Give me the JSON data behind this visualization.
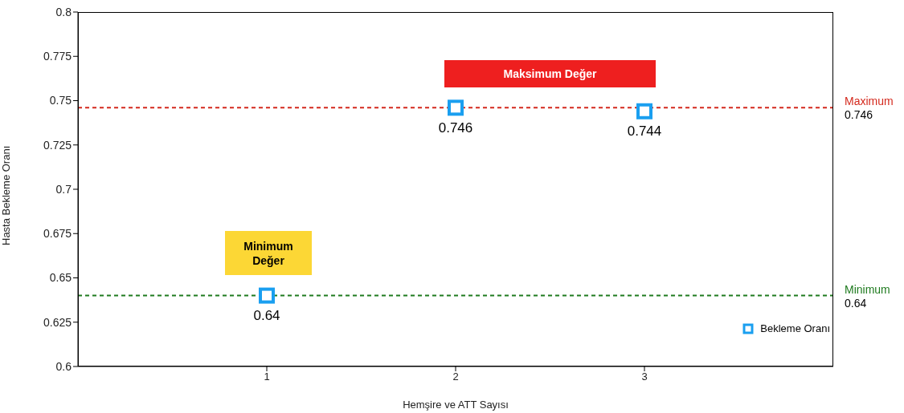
{
  "chart_data": {
    "type": "scatter",
    "xlabel": "Hemşire ve ATT Sayısı",
    "ylabel": "Hasta Bekleme Oranı",
    "x": [
      1,
      2,
      3
    ],
    "series": [
      {
        "name": "Bekleme Oranı",
        "color": "#1a9ff0",
        "values": [
          0.64,
          0.746,
          0.744
        ]
      }
    ],
    "xlim": [
      0,
      4
    ],
    "xticks": [
      1,
      2,
      3
    ],
    "ylim": [
      0.6,
      0.8
    ],
    "yticks": [
      0.6,
      0.625,
      0.65,
      0.675,
      0.7,
      0.725,
      0.75,
      0.775,
      0.8
    ],
    "marker": "square",
    "data_labels": true,
    "grid": false,
    "legend": "bottom right",
    "ref_lines": [
      {
        "axis": "y",
        "value": 0.746,
        "label": "Maximum\n0.746",
        "color": "#d42a1e",
        "line_style": "dashed"
      },
      {
        "axis": "y",
        "value": 0.64,
        "label": "Minimum\n0.64",
        "color": "#1e7a1e",
        "line_style": "dashed"
      }
    ],
    "annotations": [
      "Maksimum Değer",
      "Minimum\nDeğer"
    ]
  }
}
